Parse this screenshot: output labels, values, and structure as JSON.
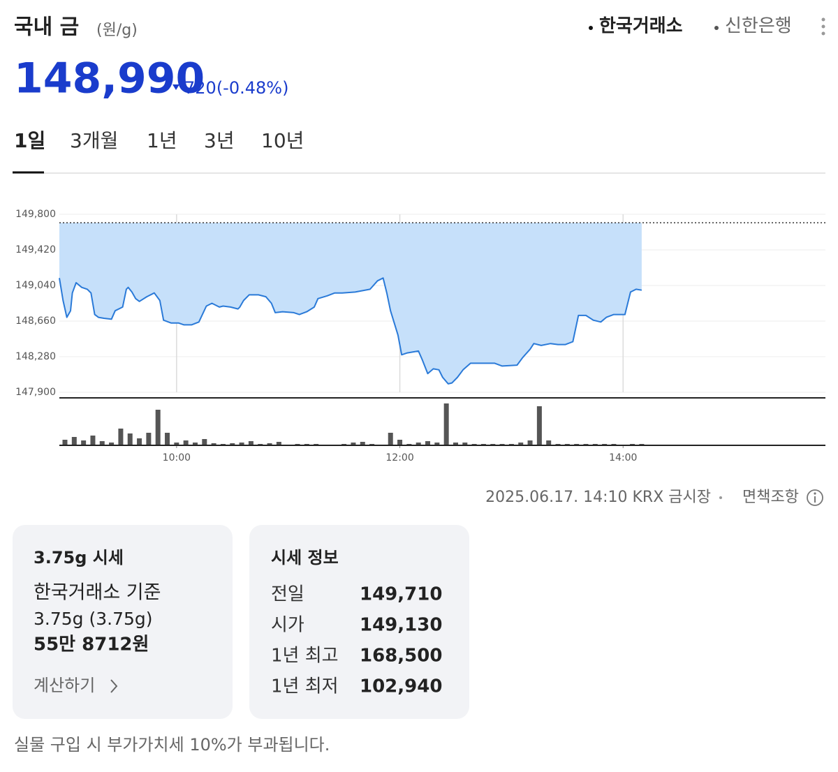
{
  "header": {
    "title": "국내 금",
    "unit": "(원/g)",
    "sources": [
      "한국거래소",
      "신한은행"
    ]
  },
  "price": {
    "value": "148,990",
    "change": "720",
    "change_pct": "(-0.48%)"
  },
  "tabs": [
    "1일",
    "3개월",
    "1년",
    "3년",
    "10년"
  ],
  "chart_data": {
    "type": "area",
    "x": [
      537,
      539,
      541,
      543,
      544,
      546,
      549,
      552,
      554,
      556,
      558,
      561,
      565,
      567,
      571,
      573,
      574,
      576,
      578,
      580,
      584,
      588,
      591,
      593,
      597,
      601,
      604,
      608,
      612,
      616,
      619,
      623,
      625,
      629,
      633,
      634,
      636,
      639,
      644,
      648,
      651,
      653,
      657,
      663,
      666,
      670,
      674,
      676,
      681,
      685,
      689,
      696,
      704,
      708,
      711,
      713,
      715,
      719,
      721,
      724,
      730,
      732,
      735,
      738,
      741,
      743,
      746,
      748,
      751,
      754,
      758,
      764,
      771,
      775,
      783,
      786,
      790,
      792,
      796,
      801,
      805,
      809,
      813,
      816,
      820,
      824,
      828,
      831,
      835,
      841,
      844,
      847,
      850
    ],
    "values": [
      149120,
      148880,
      148700,
      148770,
      148960,
      149070,
      149020,
      149000,
      148960,
      148730,
      148700,
      148690,
      148680,
      148770,
      148810,
      149000,
      149020,
      148970,
      148900,
      148870,
      148920,
      148960,
      148880,
      148670,
      148640,
      148640,
      148620,
      148620,
      148650,
      148820,
      148850,
      148810,
      148820,
      148810,
      148790,
      148810,
      148880,
      148940,
      148940,
      148920,
      148850,
      148750,
      148760,
      148750,
      148730,
      148760,
      148810,
      148900,
      148930,
      148960,
      148960,
      148970,
      149000,
      149090,
      149120,
      148960,
      148770,
      148510,
      148300,
      148320,
      148340,
      148250,
      148100,
      148150,
      148140,
      148060,
      147990,
      148000,
      148060,
      148140,
      148210,
      148210,
      148210,
      148180,
      148190,
      148270,
      148360,
      148420,
      148400,
      148420,
      148410,
      148410,
      148440,
      148720,
      148720,
      148670,
      148650,
      148700,
      148730,
      148730,
      148970,
      149000,
      148990
    ],
    "color": "#2a7ad8",
    "fill_color": "#c6e0fa",
    "reference": 149710,
    "xlim": [
      537,
      948
    ],
    "xticks": [
      {
        "value": 600,
        "label": "10:00"
      },
      {
        "value": 720,
        "label": "12:00"
      },
      {
        "value": 840,
        "label": "14:00"
      }
    ],
    "ylim": [
      147900,
      149800
    ],
    "yticks": [
      {
        "value": 147900,
        "label": "147,900"
      },
      {
        "value": 148280,
        "label": "148,280"
      },
      {
        "value": 148660,
        "label": "148,660"
      },
      {
        "value": 149040,
        "label": "149,040"
      },
      {
        "value": 149420,
        "label": "149,420"
      },
      {
        "value": 149800,
        "label": "149,800"
      }
    ],
    "grid": true,
    "volume": {
      "color": "#555555",
      "x": [
        540,
        545,
        550,
        555,
        560,
        565,
        570,
        575,
        580,
        585,
        590,
        595,
        600,
        605,
        610,
        615,
        620,
        625,
        630,
        635,
        640,
        645,
        650,
        655,
        660,
        665,
        670,
        675,
        680,
        685,
        690,
        695,
        700,
        705,
        710,
        715,
        720,
        725,
        730,
        735,
        740,
        745,
        750,
        755,
        760,
        765,
        770,
        775,
        780,
        785,
        790,
        795,
        800,
        805,
        810,
        815,
        820,
        825,
        830,
        835,
        840,
        845,
        850
      ],
      "values": [
        8,
        12,
        7,
        14,
        6,
        4,
        24,
        17,
        10,
        18,
        51,
        18,
        4,
        7,
        4,
        9,
        3,
        2,
        3,
        4,
        6,
        2,
        3,
        5,
        1,
        2,
        2,
        2,
        1,
        1,
        2,
        4,
        5,
        2,
        1,
        18,
        8,
        2,
        4,
        6,
        4,
        60,
        4,
        4,
        2,
        2,
        2,
        2,
        2,
        4,
        7,
        56,
        7,
        2,
        2,
        2,
        2,
        2,
        2,
        2,
        1,
        2,
        2
      ]
    }
  },
  "source_line": {
    "timestamp": "2025.06.17. 14:10",
    "market": "KRX 금시장",
    "disclaimer": "면책조항"
  },
  "cards": [
    {
      "title": "3.75g 시세",
      "lines": [
        "한국거래소 기준",
        "3.75g (3.75g)"
      ],
      "amount": "55만 8712원",
      "link": "계산하기"
    },
    {
      "title": "시세 정보",
      "rows": [
        [
          "전일",
          "149,710"
        ],
        [
          "시가",
          "149,130"
        ],
        [
          "1년 최고",
          "168,500"
        ],
        [
          "1년 최저",
          "102,940"
        ]
      ]
    }
  ],
  "note": "실물 구입 시 부가가치세 10%가 부과됩니다."
}
